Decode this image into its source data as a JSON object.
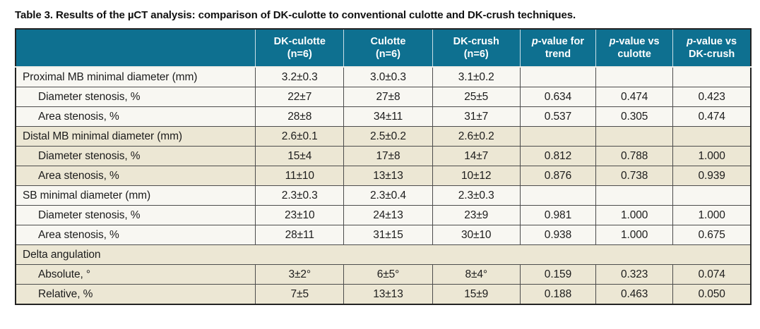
{
  "title": "Table 3. Results of the µCT analysis: comparison of DK-culotte to conventional culotte and DK-crush techniques.",
  "colors": {
    "header_background": "#0e7090",
    "header_text": "#ffffff",
    "row_white": "#f8f7f2",
    "row_beige": "#ece7d4",
    "border_dark": "#4c4c4c",
    "title_text": "#111111"
  },
  "table": {
    "columns": [
      {
        "name": "parameter-column-header",
        "top": "",
        "bottom": "",
        "italic_p": false
      },
      {
        "name": "dk-culotte-column-header",
        "top": "DK-culotte",
        "bottom": "(n=6)",
        "italic_p": false
      },
      {
        "name": "culotte-column-header",
        "top": "Culotte",
        "bottom": "(n=6)",
        "italic_p": false
      },
      {
        "name": "dk-crush-column-header",
        "top": "DK-crush",
        "bottom": "(n=6)",
        "italic_p": false
      },
      {
        "name": "p-value-trend-column-header",
        "top": "p-value for",
        "bottom": "trend",
        "italic_p": true
      },
      {
        "name": "p-value-vs-culotte-column-header",
        "top": "p-value vs",
        "bottom": "culotte",
        "italic_p": true
      },
      {
        "name": "p-value-vs-dk-crush-column-header",
        "top": "p-value vs",
        "bottom": "DK-crush",
        "italic_p": true
      }
    ],
    "rows": [
      {
        "label": "Proximal MB minimal diameter (mm)",
        "indent": false,
        "shade": "white",
        "full_span": false,
        "values": [
          "3.2±0.3",
          "3.0±0.3",
          "3.1±0.2",
          "",
          "",
          ""
        ]
      },
      {
        "label": "Diameter stenosis, %",
        "indent": true,
        "shade": "white",
        "full_span": false,
        "values": [
          "22±7",
          "27±8",
          "25±5",
          "0.634",
          "0.474",
          "0.423"
        ]
      },
      {
        "label": "Area stenosis, %",
        "indent": true,
        "shade": "white",
        "full_span": false,
        "values": [
          "28±8",
          "34±11",
          "31±7",
          "0.537",
          "0.305",
          "0.474"
        ]
      },
      {
        "label": "Distal MB minimal diameter (mm)",
        "indent": false,
        "shade": "beige",
        "full_span": false,
        "values": [
          "2.6±0.1",
          "2.5±0.2",
          "2.6±0.2",
          "",
          "",
          ""
        ]
      },
      {
        "label": "Diameter stenosis, %",
        "indent": true,
        "shade": "beige",
        "full_span": false,
        "values": [
          "15±4",
          "17±8",
          "14±7",
          "0.812",
          "0.788",
          "1.000"
        ]
      },
      {
        "label": "Area stenosis, %",
        "indent": true,
        "shade": "beige",
        "full_span": false,
        "values": [
          "11±10",
          "13±13",
          "10±12",
          "0.876",
          "0.738",
          "0.939"
        ]
      },
      {
        "label": "SB minimal diameter (mm)",
        "indent": false,
        "shade": "white",
        "full_span": false,
        "values": [
          "2.3±0.3",
          "2.3±0.4",
          "2.3±0.3",
          "",
          "",
          ""
        ]
      },
      {
        "label": "Diameter stenosis, %",
        "indent": true,
        "shade": "white",
        "full_span": false,
        "values": [
          "23±10",
          "24±13",
          "23±9",
          "0.981",
          "1.000",
          "1.000"
        ]
      },
      {
        "label": "Area stenosis, %",
        "indent": true,
        "shade": "white",
        "full_span": false,
        "values": [
          "28±11",
          "31±15",
          "30±10",
          "0.938",
          "1.000",
          "0.675"
        ]
      },
      {
        "label": "Delta angulation",
        "indent": false,
        "shade": "beige",
        "full_span": true,
        "values": []
      },
      {
        "label": "Absolute, °",
        "indent": true,
        "shade": "beige",
        "full_span": false,
        "values": [
          "3±2°",
          "6±5°",
          "8±4°",
          "0.159",
          "0.323",
          "0.074"
        ]
      },
      {
        "label": "Relative, %",
        "indent": true,
        "shade": "beige",
        "full_span": false,
        "values": [
          "7±5",
          "13±13",
          "15±9",
          "0.188",
          "0.463",
          "0.050"
        ]
      }
    ]
  }
}
